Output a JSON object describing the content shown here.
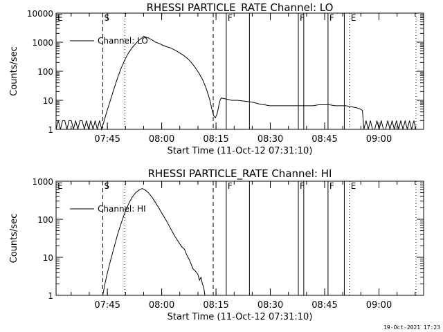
{
  "footer": {
    "stamp": "19-Oct-2021 17:23"
  },
  "chart_data": [
    {
      "type": "line",
      "panel": "top",
      "title": "RHESSI PARTICLE_RATE Channel: LO",
      "xlabel": "Start Time (11-Oct-12 07:31:10)",
      "ylabel": "Counts/sec",
      "yscale": "log",
      "x_unit": "minutes after 07:31:10",
      "xlim": [
        0,
        101.5
      ],
      "ylim": [
        1,
        10000
      ],
      "xticks": [
        {
          "t": 14.17,
          "label": "07:45"
        },
        {
          "t": 29.17,
          "label": "08:00"
        },
        {
          "t": 44.17,
          "label": "08:15"
        },
        {
          "t": 59.17,
          "label": "08:30"
        },
        {
          "t": 74.17,
          "label": "08:45"
        },
        {
          "t": 89.17,
          "label": "09:00"
        }
      ],
      "yticks": [
        {
          "v": 1,
          "label": "1"
        },
        {
          "v": 10,
          "label": "10"
        },
        {
          "v": 100,
          "label": "100"
        },
        {
          "v": 1000,
          "label": "1000"
        },
        {
          "v": 10000,
          "label": "10000"
        }
      ],
      "legend": {
        "label": "Channel: LO",
        "position": "top-left"
      },
      "markers": [
        {
          "t": 0.0,
          "style": "solid",
          "label": "E"
        },
        {
          "t": 12.9,
          "style": "dashed",
          "label": "S"
        },
        {
          "t": 19.0,
          "style": "dotted",
          "label": ""
        },
        {
          "t": 43.4,
          "style": "dashed",
          "label": ""
        },
        {
          "t": 47.0,
          "style": "solid",
          "label": "F"
        },
        {
          "t": 53.4,
          "style": "solid",
          "label": ""
        },
        {
          "t": 66.9,
          "style": "solid",
          "label": "F"
        },
        {
          "t": 68.4,
          "style": "solid",
          "label": ""
        },
        {
          "t": 75.1,
          "style": "solid",
          "label": "F"
        },
        {
          "t": 79.6,
          "style": "solid",
          "label": ""
        },
        {
          "t": 81.0,
          "style": "dotted",
          "label": "E"
        },
        {
          "t": 99.4,
          "style": "dotted",
          "label": ""
        }
      ],
      "series": [
        {
          "name": "Channel: LO",
          "points": [
            [
              0.0,
              1
            ],
            [
              0.6,
              2
            ],
            [
              1.2,
              1
            ],
            [
              1.8,
              2
            ],
            [
              2.4,
              2
            ],
            [
              3.0,
              1
            ],
            [
              3.6,
              2
            ],
            [
              4.2,
              2
            ],
            [
              4.8,
              1
            ],
            [
              5.4,
              2
            ],
            [
              6.0,
              1
            ],
            [
              6.6,
              2
            ],
            [
              7.2,
              2
            ],
            [
              7.8,
              1
            ],
            [
              8.4,
              2
            ],
            [
              9.0,
              1
            ],
            [
              9.6,
              2
            ],
            [
              10.2,
              1
            ],
            [
              10.8,
              2
            ],
            [
              11.4,
              1
            ],
            [
              12.0,
              2
            ],
            [
              12.6,
              1
            ],
            [
              13.0,
              1.5
            ],
            [
              14.0,
              4
            ],
            [
              15.0,
              10
            ],
            [
              16.0,
              25
            ],
            [
              17.0,
              60
            ],
            [
              18.0,
              130
            ],
            [
              19.0,
              250
            ],
            [
              20.0,
              420
            ],
            [
              21.0,
              650
            ],
            [
              22.0,
              900
            ],
            [
              23.0,
              1200
            ],
            [
              23.7,
              1400
            ],
            [
              24.2,
              1600
            ],
            [
              24.8,
              1500
            ],
            [
              25.5,
              1400
            ],
            [
              26.5,
              1200
            ],
            [
              27.5,
              1000
            ],
            [
              28.5,
              900
            ],
            [
              29.5,
              780
            ],
            [
              30.5,
              700
            ],
            [
              31.5,
              640
            ],
            [
              32.5,
              560
            ],
            [
              33.5,
              480
            ],
            [
              34.5,
              400
            ],
            [
              35.5,
              330
            ],
            [
              36.5,
              260
            ],
            [
              37.5,
              190
            ],
            [
              38.5,
              130
            ],
            [
              39.5,
              85
            ],
            [
              40.5,
              50
            ],
            [
              41.5,
              25
            ],
            [
              42.5,
              10
            ],
            [
              43.0,
              5
            ],
            [
              43.5,
              3
            ],
            [
              44.0,
              2.5
            ],
            [
              44.5,
              3.5
            ],
            [
              45.0,
              7
            ],
            [
              45.3,
              10
            ],
            [
              45.6,
              12
            ],
            [
              47.0,
              11
            ],
            [
              48.5,
              10
            ],
            [
              50.0,
              10
            ],
            [
              51.5,
              9.5
            ],
            [
              53.0,
              9
            ],
            [
              54.5,
              8.5
            ],
            [
              56.0,
              7.5
            ],
            [
              57.5,
              7
            ],
            [
              59.0,
              6.5
            ],
            [
              60.5,
              6.5
            ],
            [
              62.0,
              6.5
            ],
            [
              63.5,
              6.5
            ],
            [
              65.0,
              6.5
            ],
            [
              66.5,
              6.5
            ],
            [
              68.0,
              6.5
            ],
            [
              69.5,
              6.5
            ],
            [
              71.0,
              6.5
            ],
            [
              72.5,
              7
            ],
            [
              74.0,
              7
            ],
            [
              75.5,
              7
            ],
            [
              77.0,
              6.5
            ],
            [
              78.5,
              6.5
            ],
            [
              80.0,
              6.5
            ],
            [
              81.5,
              6
            ],
            [
              83.0,
              5.5
            ],
            [
              84.0,
              5
            ],
            [
              84.6,
              4.5
            ],
            [
              85.0,
              1
            ],
            [
              85.6,
              2
            ],
            [
              86.2,
              1
            ],
            [
              86.8,
              2
            ],
            [
              87.4,
              1
            ],
            [
              88.0,
              1
            ],
            [
              88.6,
              2
            ],
            [
              89.2,
              1
            ],
            [
              89.8,
              2
            ],
            [
              90.4,
              1
            ],
            [
              91.0,
              1
            ],
            [
              91.6,
              2
            ],
            [
              92.2,
              1
            ],
            [
              92.8,
              2
            ],
            [
              93.4,
              1
            ],
            [
              94.0,
              2
            ],
            [
              94.6,
              1
            ],
            [
              95.2,
              2
            ],
            [
              95.8,
              1
            ],
            [
              96.4,
              2
            ],
            [
              97.0,
              1
            ],
            [
              97.6,
              2
            ],
            [
              98.2,
              1
            ],
            [
              98.8,
              2
            ],
            [
              99.4,
              1
            ]
          ]
        }
      ]
    },
    {
      "type": "line",
      "panel": "bottom",
      "title": "RHESSI PARTICLE_RATE Channel: HI",
      "xlabel": "Start Time (11-Oct-12 07:31:10)",
      "ylabel": "Counts/sec",
      "yscale": "log",
      "x_unit": "minutes after 07:31:10",
      "xlim": [
        0,
        101.5
      ],
      "ylim": [
        1,
        1000
      ],
      "xticks": [
        {
          "t": 14.17,
          "label": "07:45"
        },
        {
          "t": 29.17,
          "label": "08:00"
        },
        {
          "t": 44.17,
          "label": "08:15"
        },
        {
          "t": 59.17,
          "label": "08:30"
        },
        {
          "t": 74.17,
          "label": "08:45"
        },
        {
          "t": 89.17,
          "label": "09:00"
        }
      ],
      "yticks": [
        {
          "v": 1,
          "label": "1"
        },
        {
          "v": 10,
          "label": "10"
        },
        {
          "v": 100,
          "label": "100"
        },
        {
          "v": 1000,
          "label": "1000"
        }
      ],
      "legend": {
        "label": "Channel: HI",
        "position": "top-left"
      },
      "markers": [
        {
          "t": 0.0,
          "style": "solid",
          "label": "E"
        },
        {
          "t": 12.9,
          "style": "dashed",
          "label": "S"
        },
        {
          "t": 19.0,
          "style": "dotted",
          "label": ""
        },
        {
          "t": 43.4,
          "style": "dashed",
          "label": ""
        },
        {
          "t": 47.0,
          "style": "solid",
          "label": "F"
        },
        {
          "t": 53.4,
          "style": "solid",
          "label": ""
        },
        {
          "t": 66.9,
          "style": "solid",
          "label": "F"
        },
        {
          "t": 68.4,
          "style": "solid",
          "label": ""
        },
        {
          "t": 75.1,
          "style": "solid",
          "label": "F"
        },
        {
          "t": 79.6,
          "style": "solid",
          "label": ""
        },
        {
          "t": 81.0,
          "style": "dotted",
          "label": "E"
        },
        {
          "t": 99.4,
          "style": "dotted",
          "label": ""
        }
      ],
      "series": [
        {
          "name": "Channel: HI",
          "points": [
            [
              12.9,
              1
            ],
            [
              13.5,
              2
            ],
            [
              14.2,
              4
            ],
            [
              15.0,
              8
            ],
            [
              16.0,
              18
            ],
            [
              17.0,
              40
            ],
            [
              18.0,
              80
            ],
            [
              19.0,
              150
            ],
            [
              20.0,
              250
            ],
            [
              21.0,
              380
            ],
            [
              22.0,
              500
            ],
            [
              23.0,
              600
            ],
            [
              23.8,
              640
            ],
            [
              24.5,
              600
            ],
            [
              25.5,
              500
            ],
            [
              26.5,
              380
            ],
            [
              27.5,
              270
            ],
            [
              28.5,
              190
            ],
            [
              29.5,
              130
            ],
            [
              30.5,
              90
            ],
            [
              31.5,
              60
            ],
            [
              32.5,
              40
            ],
            [
              33.5,
              28
            ],
            [
              34.5,
              20
            ],
            [
              35.5,
              16
            ],
            [
              36.0,
              12
            ],
            [
              36.7,
              9
            ],
            [
              37.2,
              7
            ],
            [
              37.8,
              5
            ],
            [
              38.3,
              4.5
            ],
            [
              38.8,
              4
            ],
            [
              39.2,
              3.5
            ],
            [
              39.6,
              2.5
            ],
            [
              40.0,
              3
            ],
            [
              40.4,
              2
            ],
            [
              40.8,
              1.6
            ],
            [
              41.1,
              1
            ]
          ]
        }
      ]
    }
  ]
}
